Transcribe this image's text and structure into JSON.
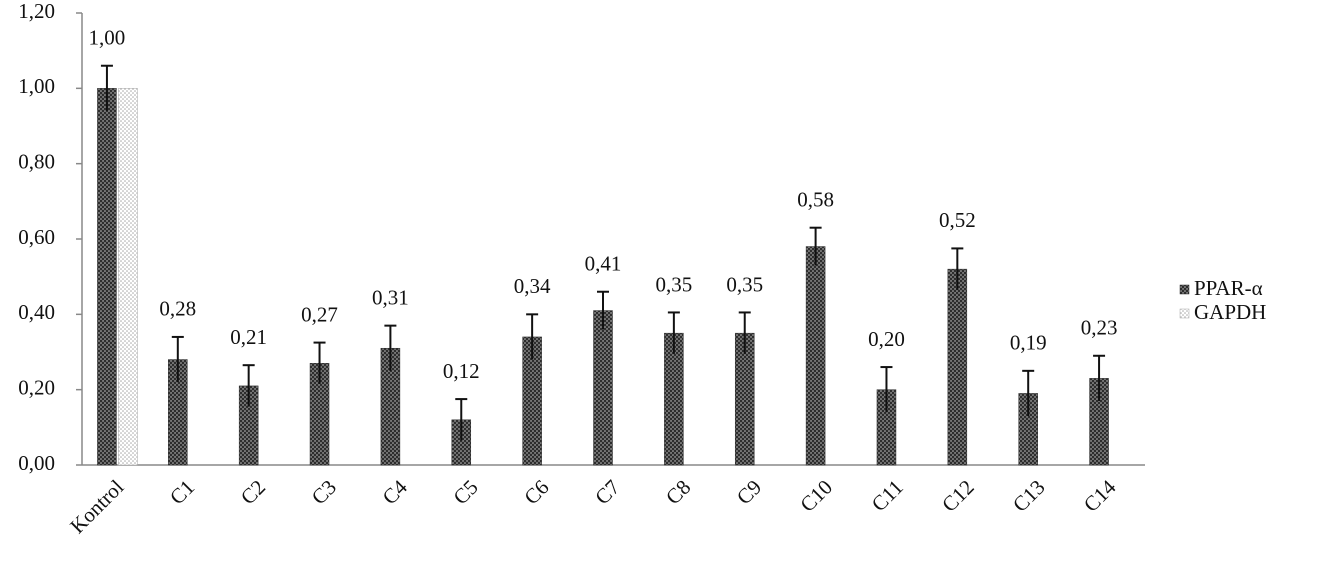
{
  "chart_data": {
    "type": "bar",
    "categories": [
      "Kontrol",
      "C1",
      "C2",
      "C3",
      "C4",
      "C5",
      "C6",
      "C7",
      "C8",
      "C9",
      "C10",
      "C11",
      "C12",
      "C13",
      "C14"
    ],
    "series": [
      {
        "name": "PPAR-α",
        "color": "#2b2b2b",
        "values": [
          1.0,
          0.28,
          0.21,
          0.27,
          0.31,
          0.12,
          0.34,
          0.41,
          0.35,
          0.35,
          0.58,
          0.2,
          0.52,
          0.19,
          0.23
        ],
        "value_labels": [
          "1,00",
          "0,28",
          "0,21",
          "0,27",
          "0,31",
          "0,12",
          "0,34",
          "0,41",
          "0,35",
          "0,35",
          "0,58",
          "0,20",
          "0,52",
          "0,19",
          "0,23"
        ],
        "errors": [
          0.06,
          0.06,
          0.055,
          0.055,
          0.06,
          0.055,
          0.06,
          0.05,
          0.055,
          0.055,
          0.05,
          0.06,
          0.055,
          0.06,
          0.06
        ]
      },
      {
        "name": "GAPDH",
        "color": "#a8a8a8",
        "values": [
          1.0,
          null,
          null,
          null,
          null,
          null,
          null,
          null,
          null,
          null,
          null,
          null,
          null,
          null,
          null
        ]
      }
    ],
    "ylim": [
      0,
      1.2
    ],
    "yticks": [
      {
        "value": 0,
        "label": "0,00"
      },
      {
        "value": 0.2,
        "label": "0,20"
      },
      {
        "value": 0.4,
        "label": "0,40"
      },
      {
        "value": 0.6,
        "label": "0,60"
      },
      {
        "value": 0.8,
        "label": "0,80"
      },
      {
        "value": 1.0,
        "label": "1,00"
      },
      {
        "value": 1.2,
        "label": "1,20"
      }
    ],
    "grid": false,
    "legend": "right"
  }
}
